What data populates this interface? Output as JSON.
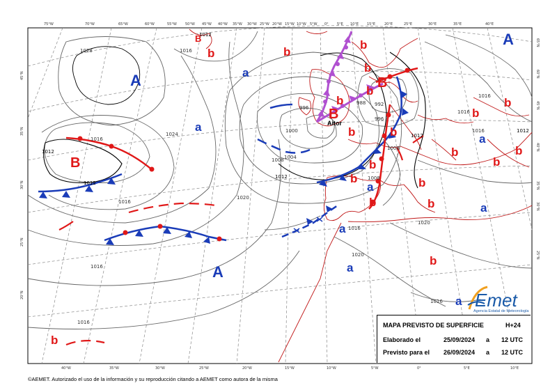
{
  "map": {
    "title": "MAPA PREVISTO DE SUPERFICIE",
    "range": "H+24",
    "elaborated_label": "Elaborado el",
    "elaborated_date": "25/09/2024",
    "forecast_label": "Previsto para el",
    "forecast_date": "26/09/2024",
    "at": "a",
    "time": "12 UTC",
    "copyright": "©AEMET. Autorizado el uso de la información y su reproducción citando a AEMET como autora de la misma"
  },
  "logo": {
    "name": "AEmet",
    "subtitle": "Agencia Estatal de Meteorología",
    "colors": {
      "a": "#f0a020",
      "emet": "#1a5aa8"
    }
  },
  "colors": {
    "high": "#1a3cb8",
    "low": "#e01818",
    "cold_front": "#1a3cb8",
    "warm_front": "#e01818",
    "occluded_front": "#b050d0",
    "isobar": "#666666",
    "isobar_1012": "#000000",
    "coast": "#c01818",
    "graticule": "#888888"
  },
  "pressure_centers": {
    "highs": [
      "A",
      "A",
      "A"
    ],
    "lows": [
      "B",
      "B",
      "B",
      "B"
    ],
    "high_markers": [
      "a",
      "a",
      "a",
      "a",
      "a",
      "a",
      "a",
      "a"
    ],
    "low_markers": [
      "b",
      "b",
      "b",
      "b",
      "b",
      "b",
      "b",
      "b",
      "b",
      "b",
      "b",
      "b",
      "b",
      "b",
      "b",
      "b",
      "b",
      "b",
      "b",
      "b"
    ],
    "aitor": "Aitor"
  },
  "isobar_labels": [
    "1028",
    "1024",
    "1020",
    "1020",
    "1016",
    "1016",
    "1016",
    "1016",
    "1016",
    "1016",
    "1016",
    "1012",
    "1012",
    "1012",
    "1012",
    "1012",
    "1012",
    "1008",
    "1008",
    "1008",
    "1004",
    "1000",
    "996",
    "996",
    "992",
    "988",
    "1020",
    "1016",
    "1016",
    "1016"
  ],
  "lon_ticks_top": [
    "75°W",
    "70°W",
    "65°W",
    "60°W",
    "55°W",
    "50°W",
    "45°W",
    "40°W",
    "35°W",
    "30°W",
    "25°W",
    "20°W",
    "15°W",
    "10°W",
    "5°W",
    "0°",
    "5°E",
    "10°E",
    "15°E",
    "20°E",
    "25°E",
    "30°E",
    "35°E",
    "40°E"
  ],
  "lon_ticks_bottom": [
    "40°W",
    "35°W",
    "30°W",
    "25°W",
    "20°W",
    "15°W",
    "10°W",
    "5°W",
    "0°",
    "5°E",
    "10°E"
  ],
  "lat_ticks_left": [
    "45°N",
    "35°N",
    "30°N",
    "25°N",
    "20°N"
  ],
  "lat_ticks_right": [
    "65°N",
    "60°N",
    "45°N",
    "40°N",
    "35°N",
    "30°N",
    "25°N"
  ]
}
